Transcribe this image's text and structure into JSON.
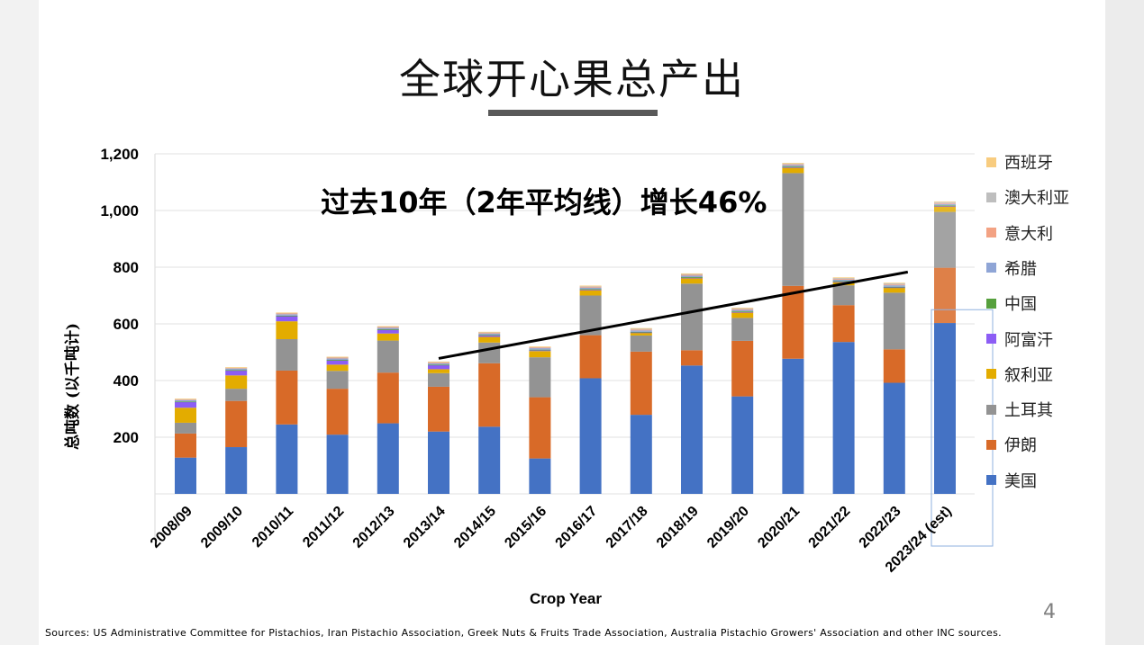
{
  "slide": {
    "title": "全球开心果总产出",
    "annotation": "过去10年（2年平均线）增长46%",
    "page_number": "4",
    "sources": "Sources: US Administrative Committee for Pistachios, Iran Pistachio Association, Greek Nuts & Fruits Trade Association, Australia Pistachio Growers' Association and other INC sources."
  },
  "chart_data": {
    "type": "bar",
    "stacked": true,
    "xlabel": "Crop Year",
    "ylabel": "总吨数 (以千吨计)",
    "ylim": [
      0,
      1200
    ],
    "yticks": [
      {
        "value": 200,
        "label": "200"
      },
      {
        "value": 400,
        "label": "400"
      },
      {
        "value": 600,
        "label": "600"
      },
      {
        "value": 800,
        "label": "800"
      },
      {
        "value": 1000,
        "label": "1,000"
      },
      {
        "value": 1200,
        "label": "1,200"
      }
    ],
    "grid": true,
    "legend_position": "right",
    "categories": [
      "2008/09",
      "2009/10",
      "2010/11",
      "2011/12",
      "2012/13",
      "2013/14",
      "2014/15",
      "2015/16",
      "2016/17",
      "2017/18",
      "2018/19",
      "2019/20",
      "2020/21",
      "2021/22",
      "2022/23",
      "2023/24 (est)"
    ],
    "series": [
      {
        "name": "美国",
        "color": "#4472c4",
        "values": [
          128,
          165,
          245,
          209,
          249,
          220,
          237,
          125,
          408,
          279,
          453,
          344,
          477,
          536,
          392,
          603
        ]
      },
      {
        "name": "伊朗",
        "color": "#d86a28",
        "values": [
          85,
          163,
          190,
          162,
          179,
          158,
          224,
          216,
          152,
          223,
          54,
          196,
          257,
          130,
          118,
          195
        ]
      },
      {
        "name": "土耳其",
        "color": "#939393",
        "values": [
          38,
          43,
          111,
          63,
          113,
          48,
          73,
          141,
          140,
          57,
          235,
          81,
          398,
          70,
          200,
          197
        ]
      },
      {
        "name": "叙利亚",
        "color": "#e3ac00",
        "values": [
          53,
          47,
          63,
          22,
          25,
          14,
          20,
          22,
          20,
          10,
          20,
          20,
          20,
          12,
          18,
          20
        ]
      },
      {
        "name": "阿富汗",
        "color": "#8c5df5",
        "values": [
          20,
          17,
          18,
          15,
          13,
          14,
          5,
          3,
          1,
          1,
          1,
          1,
          1,
          1,
          1,
          1
        ]
      },
      {
        "name": "中国",
        "color": "#56a03d",
        "values": [
          2,
          2,
          2,
          2,
          2,
          2,
          2,
          2,
          2,
          2,
          2,
          2,
          2,
          2,
          2,
          2
        ]
      },
      {
        "name": "希腊",
        "color": "#8fa5d6",
        "values": [
          5,
          5,
          5,
          5,
          5,
          5,
          5,
          5,
          5,
          5,
          5,
          5,
          5,
          5,
          5,
          5
        ]
      },
      {
        "name": "意大利",
        "color": "#f3a283",
        "values": [
          3,
          3,
          3,
          3,
          3,
          3,
          3,
          3,
          3,
          3,
          3,
          3,
          3,
          3,
          3,
          3
        ]
      },
      {
        "name": "澳大利亚",
        "color": "#bebebe",
        "values": [
          1,
          1,
          2,
          2,
          2,
          2,
          2,
          2,
          3,
          3,
          3,
          3,
          3,
          3,
          4,
          4
        ]
      },
      {
        "name": "西班牙",
        "color": "#f8cc7f",
        "values": [
          1,
          1,
          1,
          1,
          1,
          1,
          1,
          1,
          1,
          2,
          2,
          2,
          2,
          2,
          2,
          2
        ]
      }
    ],
    "trendline": {
      "x_start": "2013/14",
      "y_start": 478,
      "x_end": "2022/23",
      "y_end": 783
    }
  }
}
